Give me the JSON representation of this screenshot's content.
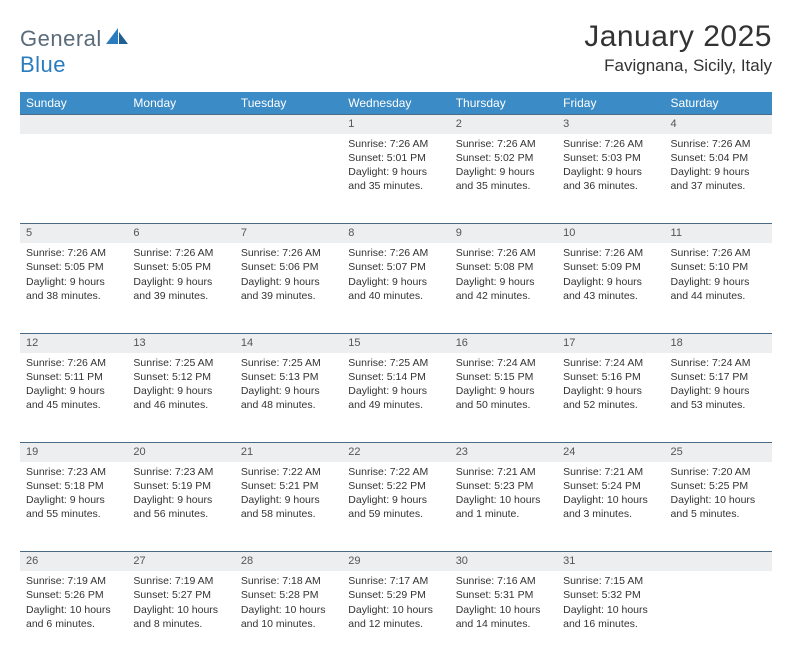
{
  "logo": {
    "general": "General",
    "blue": "Blue"
  },
  "title": "January 2025",
  "subtitle": "Favignana, Sicily, Italy",
  "colors": {
    "header_bg": "#3b8bc6",
    "header_text": "#ffffff",
    "daynum_bg": "#eceeef",
    "border": "#4a6a85",
    "text": "#333333",
    "logo_gray": "#5a6b7a",
    "logo_blue": "#2a7cbf"
  },
  "day_names": [
    "Sunday",
    "Monday",
    "Tuesday",
    "Wednesday",
    "Thursday",
    "Friday",
    "Saturday"
  ],
  "weeks": [
    [
      {
        "d": "",
        "l1": "",
        "l2": "",
        "l3": "",
        "l4": ""
      },
      {
        "d": "",
        "l1": "",
        "l2": "",
        "l3": "",
        "l4": ""
      },
      {
        "d": "",
        "l1": "",
        "l2": "",
        "l3": "",
        "l4": ""
      },
      {
        "d": "1",
        "l1": "Sunrise: 7:26 AM",
        "l2": "Sunset: 5:01 PM",
        "l3": "Daylight: 9 hours",
        "l4": "and 35 minutes."
      },
      {
        "d": "2",
        "l1": "Sunrise: 7:26 AM",
        "l2": "Sunset: 5:02 PM",
        "l3": "Daylight: 9 hours",
        "l4": "and 35 minutes."
      },
      {
        "d": "3",
        "l1": "Sunrise: 7:26 AM",
        "l2": "Sunset: 5:03 PM",
        "l3": "Daylight: 9 hours",
        "l4": "and 36 minutes."
      },
      {
        "d": "4",
        "l1": "Sunrise: 7:26 AM",
        "l2": "Sunset: 5:04 PM",
        "l3": "Daylight: 9 hours",
        "l4": "and 37 minutes."
      }
    ],
    [
      {
        "d": "5",
        "l1": "Sunrise: 7:26 AM",
        "l2": "Sunset: 5:05 PM",
        "l3": "Daylight: 9 hours",
        "l4": "and 38 minutes."
      },
      {
        "d": "6",
        "l1": "Sunrise: 7:26 AM",
        "l2": "Sunset: 5:05 PM",
        "l3": "Daylight: 9 hours",
        "l4": "and 39 minutes."
      },
      {
        "d": "7",
        "l1": "Sunrise: 7:26 AM",
        "l2": "Sunset: 5:06 PM",
        "l3": "Daylight: 9 hours",
        "l4": "and 39 minutes."
      },
      {
        "d": "8",
        "l1": "Sunrise: 7:26 AM",
        "l2": "Sunset: 5:07 PM",
        "l3": "Daylight: 9 hours",
        "l4": "and 40 minutes."
      },
      {
        "d": "9",
        "l1": "Sunrise: 7:26 AM",
        "l2": "Sunset: 5:08 PM",
        "l3": "Daylight: 9 hours",
        "l4": "and 42 minutes."
      },
      {
        "d": "10",
        "l1": "Sunrise: 7:26 AM",
        "l2": "Sunset: 5:09 PM",
        "l3": "Daylight: 9 hours",
        "l4": "and 43 minutes."
      },
      {
        "d": "11",
        "l1": "Sunrise: 7:26 AM",
        "l2": "Sunset: 5:10 PM",
        "l3": "Daylight: 9 hours",
        "l4": "and 44 minutes."
      }
    ],
    [
      {
        "d": "12",
        "l1": "Sunrise: 7:26 AM",
        "l2": "Sunset: 5:11 PM",
        "l3": "Daylight: 9 hours",
        "l4": "and 45 minutes."
      },
      {
        "d": "13",
        "l1": "Sunrise: 7:25 AM",
        "l2": "Sunset: 5:12 PM",
        "l3": "Daylight: 9 hours",
        "l4": "and 46 minutes."
      },
      {
        "d": "14",
        "l1": "Sunrise: 7:25 AM",
        "l2": "Sunset: 5:13 PM",
        "l3": "Daylight: 9 hours",
        "l4": "and 48 minutes."
      },
      {
        "d": "15",
        "l1": "Sunrise: 7:25 AM",
        "l2": "Sunset: 5:14 PM",
        "l3": "Daylight: 9 hours",
        "l4": "and 49 minutes."
      },
      {
        "d": "16",
        "l1": "Sunrise: 7:24 AM",
        "l2": "Sunset: 5:15 PM",
        "l3": "Daylight: 9 hours",
        "l4": "and 50 minutes."
      },
      {
        "d": "17",
        "l1": "Sunrise: 7:24 AM",
        "l2": "Sunset: 5:16 PM",
        "l3": "Daylight: 9 hours",
        "l4": "and 52 minutes."
      },
      {
        "d": "18",
        "l1": "Sunrise: 7:24 AM",
        "l2": "Sunset: 5:17 PM",
        "l3": "Daylight: 9 hours",
        "l4": "and 53 minutes."
      }
    ],
    [
      {
        "d": "19",
        "l1": "Sunrise: 7:23 AM",
        "l2": "Sunset: 5:18 PM",
        "l3": "Daylight: 9 hours",
        "l4": "and 55 minutes."
      },
      {
        "d": "20",
        "l1": "Sunrise: 7:23 AM",
        "l2": "Sunset: 5:19 PM",
        "l3": "Daylight: 9 hours",
        "l4": "and 56 minutes."
      },
      {
        "d": "21",
        "l1": "Sunrise: 7:22 AM",
        "l2": "Sunset: 5:21 PM",
        "l3": "Daylight: 9 hours",
        "l4": "and 58 minutes."
      },
      {
        "d": "22",
        "l1": "Sunrise: 7:22 AM",
        "l2": "Sunset: 5:22 PM",
        "l3": "Daylight: 9 hours",
        "l4": "and 59 minutes."
      },
      {
        "d": "23",
        "l1": "Sunrise: 7:21 AM",
        "l2": "Sunset: 5:23 PM",
        "l3": "Daylight: 10 hours",
        "l4": "and 1 minute."
      },
      {
        "d": "24",
        "l1": "Sunrise: 7:21 AM",
        "l2": "Sunset: 5:24 PM",
        "l3": "Daylight: 10 hours",
        "l4": "and 3 minutes."
      },
      {
        "d": "25",
        "l1": "Sunrise: 7:20 AM",
        "l2": "Sunset: 5:25 PM",
        "l3": "Daylight: 10 hours",
        "l4": "and 5 minutes."
      }
    ],
    [
      {
        "d": "26",
        "l1": "Sunrise: 7:19 AM",
        "l2": "Sunset: 5:26 PM",
        "l3": "Daylight: 10 hours",
        "l4": "and 6 minutes."
      },
      {
        "d": "27",
        "l1": "Sunrise: 7:19 AM",
        "l2": "Sunset: 5:27 PM",
        "l3": "Daylight: 10 hours",
        "l4": "and 8 minutes."
      },
      {
        "d": "28",
        "l1": "Sunrise: 7:18 AM",
        "l2": "Sunset: 5:28 PM",
        "l3": "Daylight: 10 hours",
        "l4": "and 10 minutes."
      },
      {
        "d": "29",
        "l1": "Sunrise: 7:17 AM",
        "l2": "Sunset: 5:29 PM",
        "l3": "Daylight: 10 hours",
        "l4": "and 12 minutes."
      },
      {
        "d": "30",
        "l1": "Sunrise: 7:16 AM",
        "l2": "Sunset: 5:31 PM",
        "l3": "Daylight: 10 hours",
        "l4": "and 14 minutes."
      },
      {
        "d": "31",
        "l1": "Sunrise: 7:15 AM",
        "l2": "Sunset: 5:32 PM",
        "l3": "Daylight: 10 hours",
        "l4": "and 16 minutes."
      },
      {
        "d": "",
        "l1": "",
        "l2": "",
        "l3": "",
        "l4": ""
      }
    ]
  ]
}
